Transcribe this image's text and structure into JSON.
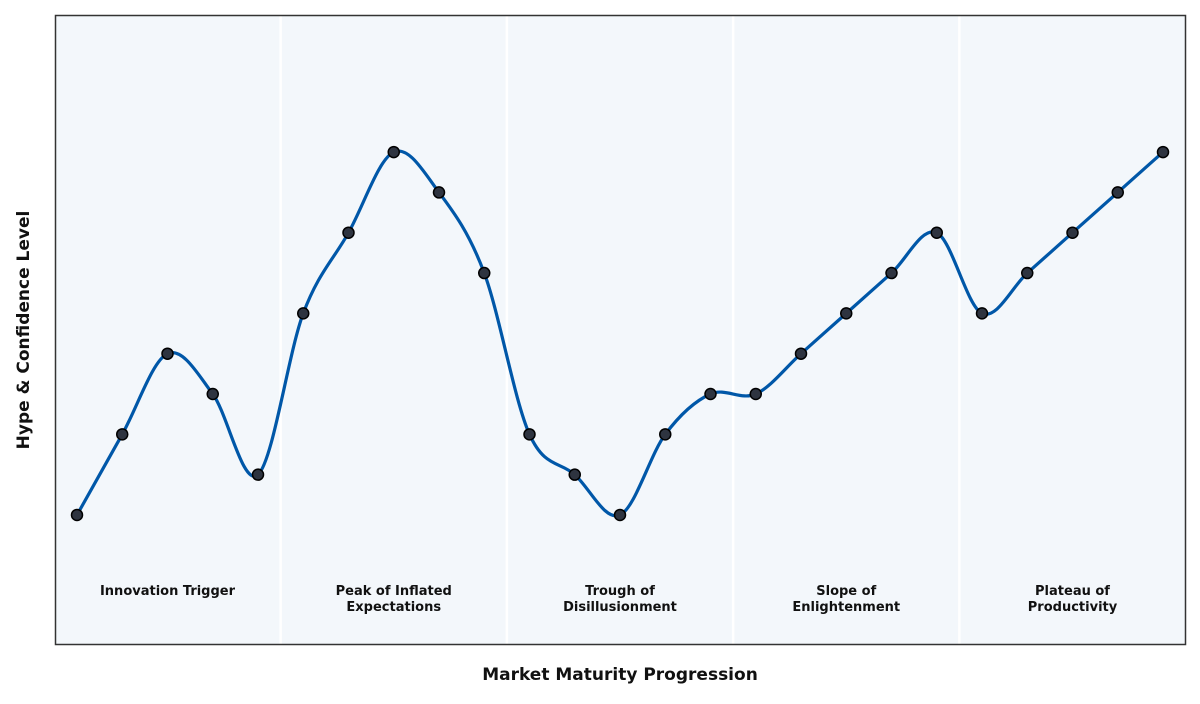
{
  "chart_data": {
    "type": "line",
    "title": "",
    "xlabel": "Market Maturity Progression",
    "ylabel": "Hype & Confidence Level",
    "ylim": [
      0.4,
      8.2
    ],
    "grid": false,
    "phases": [
      {
        "label_lines": [
          "Innovation Trigger"
        ]
      },
      {
        "label_lines": [
          "Peak of Inflated",
          "Expectations"
        ]
      },
      {
        "label_lines": [
          "Trough of",
          "Disillusionment"
        ]
      },
      {
        "label_lines": [
          "Slope of",
          "Enlightenment"
        ]
      },
      {
        "label_lines": [
          "Plateau of",
          "Productivity"
        ]
      }
    ],
    "series": [
      {
        "x": [
          0,
          1,
          2,
          3,
          4,
          5,
          6,
          7,
          8,
          9,
          10,
          11,
          12,
          13,
          14,
          15,
          16,
          17,
          18,
          19,
          20,
          21,
          22,
          23,
          24
        ],
        "values": [
          2,
          3,
          4,
          3.5,
          2.5,
          4.5,
          5.5,
          6.5,
          6,
          5,
          3,
          2.5,
          2,
          3,
          3.5,
          3.5,
          4,
          4.5,
          5,
          5.5,
          4.5,
          5,
          5.5,
          6,
          6.5
        ]
      }
    ],
    "colors": {
      "line": "#0057a8",
      "marker_fill": "#2e3440",
      "marker_edge": "#000000",
      "phase_band": "#f3f7fb",
      "phase_divider": "#ffffff",
      "frame": "#333333"
    }
  }
}
